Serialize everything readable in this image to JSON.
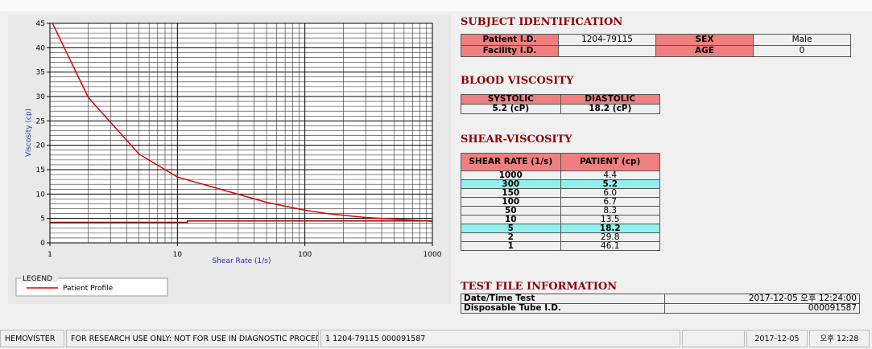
{
  "chart_data": {
    "type": "line",
    "xlabel": "Shear Rate (1/s)",
    "ylabel": "Viscosity (cp)",
    "xscale": "log",
    "xlim": [
      1,
      1000
    ],
    "ylim": [
      0,
      45
    ],
    "xticks": [
      1,
      10,
      100,
      1000
    ],
    "yticks": [
      0,
      5,
      10,
      15,
      20,
      25,
      30,
      35,
      40,
      45
    ],
    "grid": true,
    "legend_title": "LEGEND",
    "series": [
      {
        "name": "Patient Profile",
        "color": "#e00000",
        "x": [
          1,
          2,
          5,
          10,
          50,
          100,
          150,
          300,
          1000
        ],
        "values": [
          46.1,
          29.8,
          18.2,
          13.5,
          8.3,
          6.7,
          6.0,
          5.2,
          4.4
        ]
      },
      {
        "color": "#a00000",
        "x": [
          1,
          12,
          12,
          1000
        ],
        "values": [
          4.2,
          4.2,
          4.5,
          4.5
        ]
      }
    ]
  },
  "subject_identification": {
    "title": "SUBJECT IDENTIFICATION",
    "rows": [
      [
        "Patient I.D.",
        "1204-79115",
        "SEX",
        "Male"
      ],
      [
        "Facility I.D.",
        null,
        "AGE",
        "0"
      ]
    ]
  },
  "blood_viscosity": {
    "title": "BLOOD VISCOSITY",
    "headers": [
      "SYSTOLIC",
      "DIASTOLIC"
    ],
    "values": [
      "5.2 (cP)",
      "18.2 (cP)"
    ]
  },
  "shear_viscosity": {
    "title": "SHEAR-VISCOSITY",
    "headers": [
      "SHEAR RATE (1/s)",
      "PATIENT (cp)"
    ],
    "rows": [
      {
        "shear_rate": "1000",
        "patient": "4.4"
      },
      {
        "shear_rate": "300",
        "patient": "5.2",
        "highlight": true
      },
      {
        "shear_rate": "150",
        "patient": "6.0"
      },
      {
        "shear_rate": "100",
        "patient": "6.7"
      },
      {
        "shear_rate": "50",
        "patient": "8.3"
      },
      {
        "shear_rate": "10",
        "patient": "13.5"
      },
      {
        "shear_rate": "5",
        "patient": "18.2",
        "highlight": true
      },
      {
        "shear_rate": "2",
        "patient": "29.8"
      },
      {
        "shear_rate": "1",
        "patient": "46.1"
      }
    ]
  },
  "test_file_information": {
    "title": "TEST FILE INFORMATION",
    "rows": [
      [
        "Date/Time Test",
        "2017-12-05  오후 12:24:00"
      ],
      [
        "Disposable Tube I.D.",
        "000091587"
      ]
    ]
  },
  "status_bar": [
    "HEMOVISTER",
    "FOR RESEARCH USE ONLY: NOT FOR USE IN DIAGNOSTIC PROCEDURES",
    "1  1204-79115  000091587",
    "2017-12-05",
    "오후 12:28"
  ]
}
